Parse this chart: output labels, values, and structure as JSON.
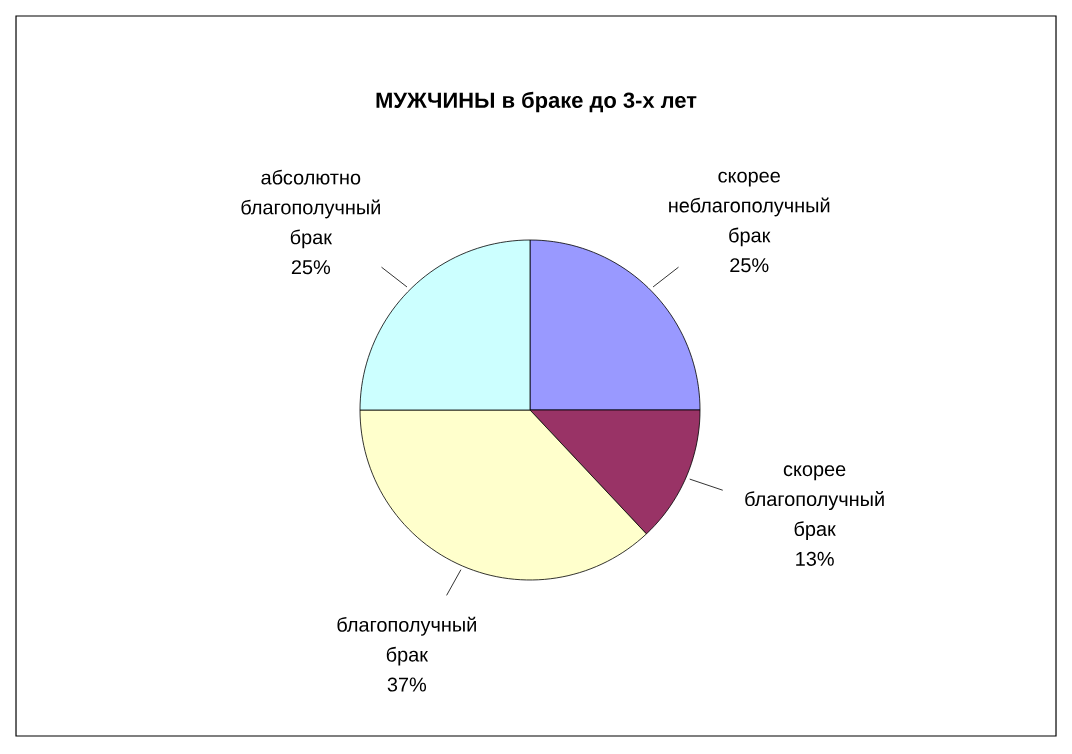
{
  "chart_data": {
    "type": "pie",
    "title": "МУЖЧИНЫ в браке до 3-х лет",
    "categories": [
      "скорее неблагополучный брак",
      "скорее благополучный брак",
      "благополучный брак",
      "абсолютно благополучный брак"
    ],
    "values": [
      25,
      13,
      37,
      25
    ],
    "value_labels": [
      "25%",
      "13%",
      "37%",
      "25%"
    ],
    "colors": [
      "#9999ff",
      "#993366",
      "#ffffcc",
      "#ccffff"
    ]
  }
}
